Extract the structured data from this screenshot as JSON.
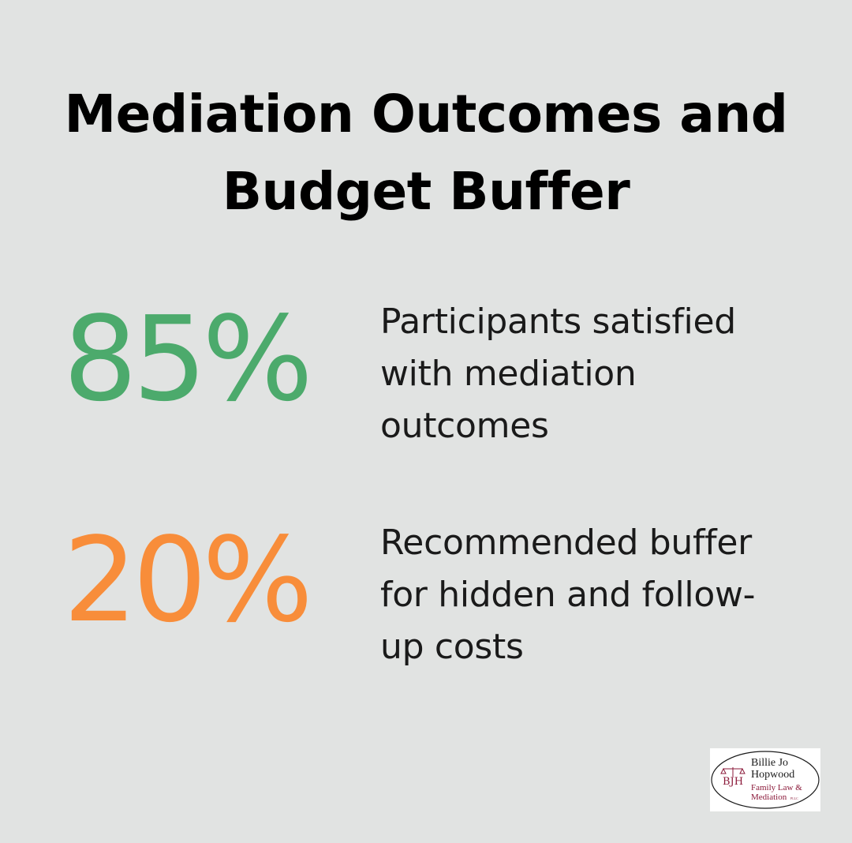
{
  "title": {
    "line1": "Mediation Outcomes and",
    "line2": "Budget Buffer"
  },
  "stats": [
    {
      "value": "85%",
      "description": "Participants satisfied\nwith mediation\noutcomes",
      "color": "#4caa6c"
    },
    {
      "value": "20%",
      "description": "Recommended buffer\nfor hidden and follow-\nup costs",
      "color": "#f88d3a"
    }
  ],
  "logo": {
    "initials": "BJH",
    "name_line1": "Billie Jo",
    "name_line2": "Hopwood",
    "tagline_line1": "Family Law &",
    "tagline_line2": "Mediation",
    "suffix": "PLLC",
    "icon": "scales-of-justice-icon",
    "accent_color": "#8b1a3a"
  },
  "colors": {
    "background": "#e1e3e2",
    "title": "#000000",
    "text": "#1a1a1a"
  }
}
